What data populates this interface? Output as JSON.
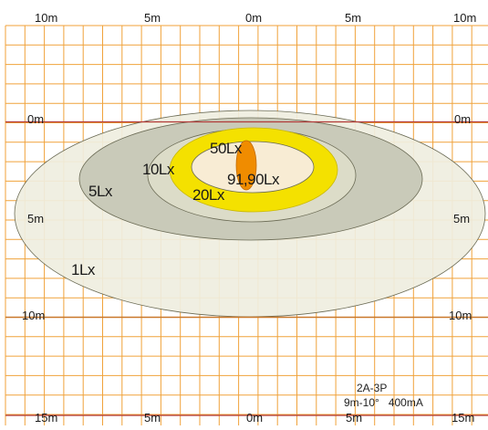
{
  "colors": {
    "grid": "#f0a23a",
    "major_line": "#b13a3a",
    "zone_1lx": "#efeee0",
    "zone_5lx": "#c9cab9",
    "zone_10lx": "#dcdcc8",
    "zone_20lx": "#f4e100",
    "zone_50lx": "#f8ecd4",
    "zone_core": "#f08c00",
    "outline": "#6b6b55"
  },
  "top_axis": [
    "10m",
    "5m",
    "0m",
    "5m",
    "10m"
  ],
  "bottom_axis": [
    "15m",
    "5m",
    "0m",
    "5m",
    "15m"
  ],
  "left_axis": [
    "0m",
    "5m",
    "10m"
  ],
  "right_axis": [
    "0m",
    "5m",
    "10m"
  ],
  "zones": {
    "lx1": "1Lx",
    "lx5": "5Lx",
    "lx10": "10Lx",
    "lx20": "20Lx",
    "lx50": "50Lx",
    "peak": "91,90Lx"
  },
  "info": {
    "model": "2A-3P",
    "spec": "9m-10°   400mA"
  }
}
